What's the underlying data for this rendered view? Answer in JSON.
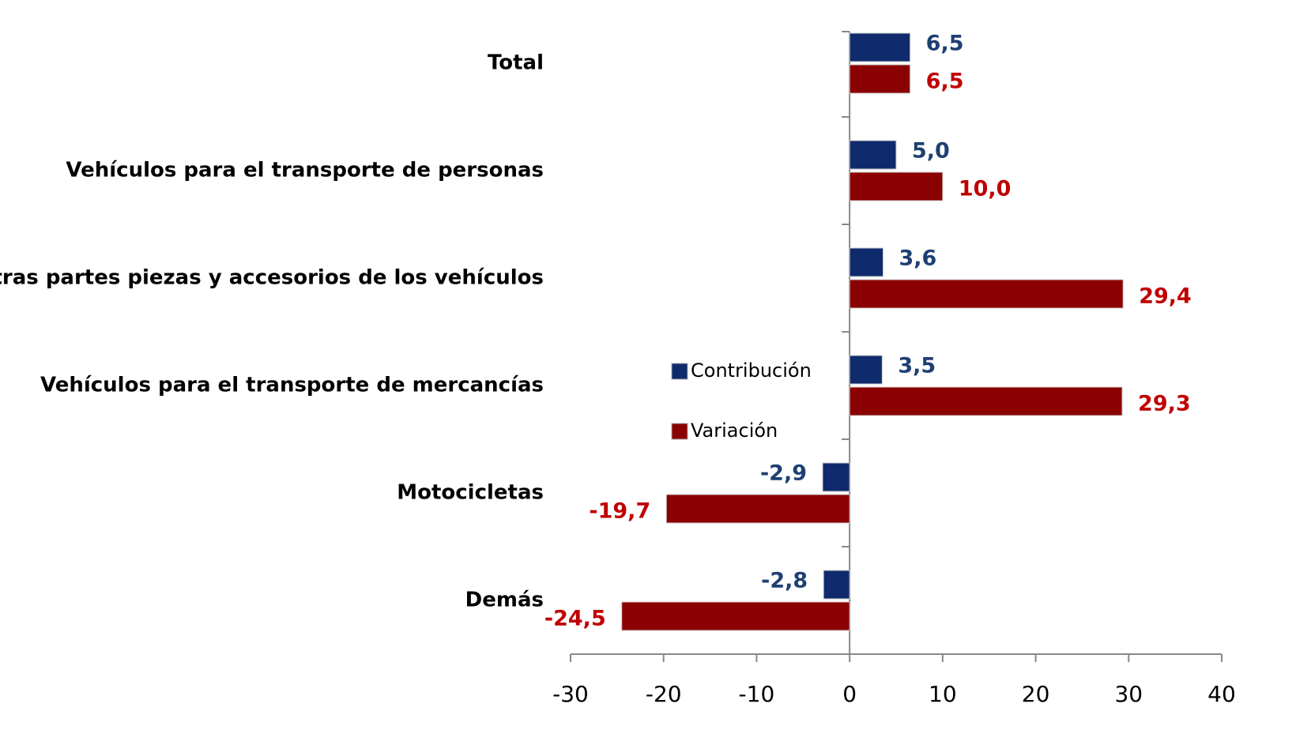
{
  "chart_data": {
    "type": "bar",
    "orientation": "horizontal",
    "categories": [
      "Total",
      "Vehículos para el transporte de personas",
      "Otras partes piezas y accesorios de los vehículos",
      "Vehículos para el transporte de mercancías",
      "Motocicletas",
      "Demás"
    ],
    "series": [
      {
        "name": "Contribución",
        "color": "#0f2b6e",
        "label_color": "#1f3f73",
        "values": [
          6.5,
          5.0,
          3.6,
          3.5,
          -2.9,
          -2.8
        ],
        "value_labels": [
          "6,5",
          "5,0",
          "3,6",
          "3,5",
          "-2,9",
          "-2,8"
        ]
      },
      {
        "name": "Variación",
        "color": "#8b0000",
        "label_color": "#c00000",
        "values": [
          6.5,
          10.0,
          29.4,
          29.3,
          -19.7,
          -24.5
        ],
        "value_labels": [
          "6,5",
          "10,0",
          "29,4",
          "29,3",
          "-19,7",
          "-24,5"
        ]
      }
    ],
    "xlim": [
      -30,
      40
    ],
    "xticks": [
      -30,
      -20,
      -10,
      0,
      10,
      20,
      30,
      40
    ]
  }
}
